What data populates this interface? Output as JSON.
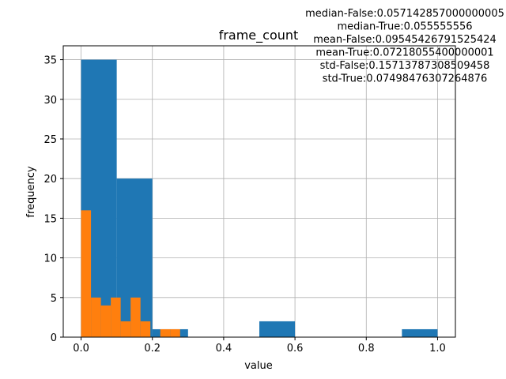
{
  "chart_data": {
    "type": "bar",
    "title": "frame_count",
    "xlabel": "value",
    "ylabel": "frequency",
    "xlim": [
      -0.05,
      1.05
    ],
    "ylim": [
      0,
      36.75
    ],
    "xticks": [
      0.0,
      0.2,
      0.4,
      0.6,
      0.8,
      1.0
    ],
    "xtick_labels": [
      "0.0",
      "0.2",
      "0.4",
      "0.6",
      "0.8",
      "1.0"
    ],
    "yticks": [
      0,
      5,
      10,
      15,
      20,
      25,
      30,
      35
    ],
    "ytick_labels": [
      "0",
      "5",
      "10",
      "15",
      "20",
      "25",
      "30",
      "35"
    ],
    "grid": true,
    "series": [
      {
        "color": "#1f77b4",
        "bins": [
          {
            "x0": 0.0,
            "x1": 0.1,
            "count": 35
          },
          {
            "x0": 0.1,
            "x1": 0.2,
            "count": 20
          },
          {
            "x0": 0.2,
            "x1": 0.3,
            "count": 1
          },
          {
            "x0": 0.5,
            "x1": 0.6,
            "count": 2
          },
          {
            "x0": 0.9,
            "x1": 1.0,
            "count": 1
          }
        ]
      },
      {
        "color": "#ff7f0e",
        "bins": [
          {
            "x0": 0.0,
            "x1": 0.0278,
            "count": 16
          },
          {
            "x0": 0.0278,
            "x1": 0.0556,
            "count": 5
          },
          {
            "x0": 0.0556,
            "x1": 0.0833,
            "count": 4
          },
          {
            "x0": 0.0833,
            "x1": 0.1111,
            "count": 5
          },
          {
            "x0": 0.1111,
            "x1": 0.1389,
            "count": 2
          },
          {
            "x0": 0.1389,
            "x1": 0.1667,
            "count": 5
          },
          {
            "x0": 0.1667,
            "x1": 0.1944,
            "count": 2
          },
          {
            "x0": 0.1944,
            "x1": 0.2222,
            "count": 0
          },
          {
            "x0": 0.2222,
            "x1": 0.25,
            "count": 1
          },
          {
            "x0": 0.25,
            "x1": 0.2778,
            "count": 1
          }
        ]
      }
    ],
    "annotations": [
      "median-False:0.057142857000000005",
      "median-True:0.055555556",
      "mean-False:0.09545426791525424",
      "mean-True:0.07218055400000001",
      "std-False:0.15713787308509458",
      "std-True:0.07498476307264876"
    ]
  }
}
